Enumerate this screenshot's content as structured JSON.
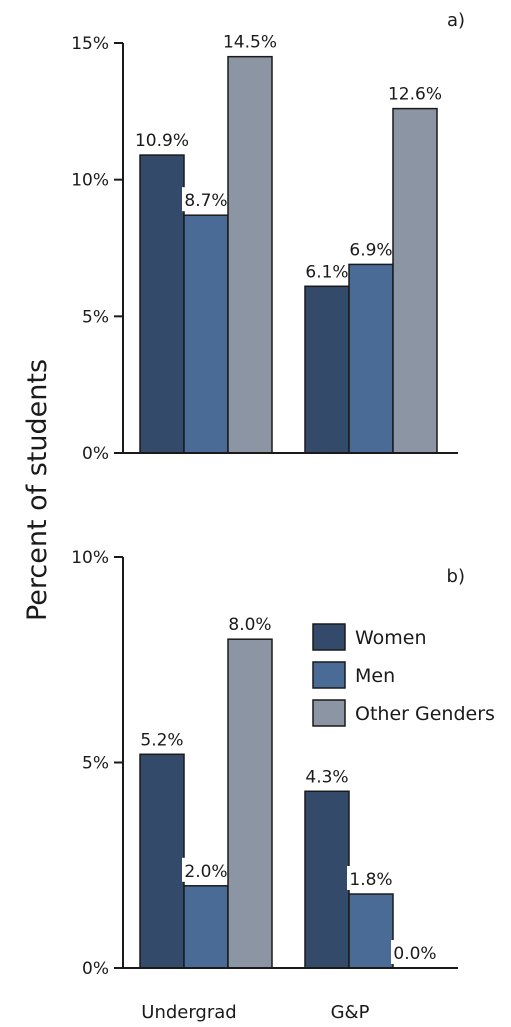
{
  "chart_data": [
    {
      "type": "bar",
      "panel_label": "a)",
      "categories": [
        "Undergrad",
        "G&P"
      ],
      "series": [
        {
          "name": "Women",
          "color": "#344a6a",
          "values": [
            10.9,
            6.1
          ],
          "labels": [
            "10.9%",
            "6.1%"
          ]
        },
        {
          "name": "Men",
          "color": "#496b96",
          "values": [
            8.7,
            6.9
          ],
          "labels": [
            "8.7%",
            "6.9%"
          ]
        },
        {
          "name": "Other Genders",
          "color": "#8b95a3",
          "values": [
            14.5,
            12.6
          ],
          "labels": [
            "14.5%",
            "12.6%"
          ]
        }
      ],
      "ylim": [
        0,
        15
      ],
      "yticks": [
        0,
        5,
        10,
        15
      ],
      "ytick_labels": [
        "0%",
        "5%",
        "10%",
        "15%"
      ]
    },
    {
      "type": "bar",
      "panel_label": "b)",
      "categories": [
        "Undergrad",
        "G&P"
      ],
      "series": [
        {
          "name": "Women",
          "color": "#344a6a",
          "values": [
            5.2,
            4.3
          ],
          "labels": [
            "5.2%",
            "4.3%"
          ]
        },
        {
          "name": "Men",
          "color": "#496b96",
          "values": [
            2.0,
            1.8
          ],
          "labels": [
            "2.0%",
            "1.8%"
          ]
        },
        {
          "name": "Other Genders",
          "color": "#8b95a3",
          "values": [
            8.0,
            0.0
          ],
          "labels": [
            "8.0%",
            "0.0%"
          ]
        }
      ],
      "ylim": [
        0,
        10
      ],
      "yticks": [
        0,
        5,
        10
      ],
      "ytick_labels": [
        "0%",
        "5%",
        "10%"
      ],
      "legend_placement": "right"
    }
  ],
  "ylabel": "Percent of students",
  "xcategories": [
    "Undergrad",
    "G&P"
  ],
  "legend": [
    {
      "name": "Women",
      "color": "#344a6a"
    },
    {
      "name": "Men",
      "color": "#496b96"
    },
    {
      "name": "Other Genders",
      "color": "#8b95a3"
    }
  ]
}
